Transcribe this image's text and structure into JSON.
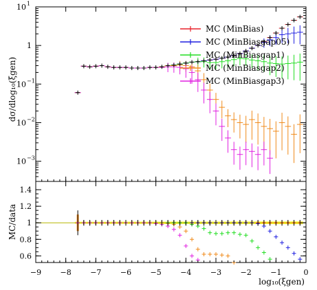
{
  "chart_data": {
    "type": "scatter",
    "title": "",
    "top_panel": {
      "ylabel": "dσ/dlog₁₀(ξgen)",
      "yscale": "log",
      "ylim": [
        0.0003,
        10
      ],
      "y_ticks": [
        {
          "value": 10,
          "label": "10",
          "exp": "1"
        },
        {
          "value": 1,
          "label": "1",
          "exp": ""
        },
        {
          "value": 0.1,
          "label": "10",
          "exp": "−1"
        },
        {
          "value": 0.01,
          "label": "10",
          "exp": "−2"
        },
        {
          "value": 0.001,
          "label": "10",
          "exp": "−3"
        }
      ]
    },
    "bottom_panel": {
      "ylabel": "MC/data",
      "ylim": [
        0.52,
        1.5
      ],
      "y_ticks": [
        1.4,
        1.2,
        1,
        0.8,
        0.6
      ]
    },
    "xlabel": "log₁₀(ξgen)",
    "xlim": [
      -9,
      0
    ],
    "x_ticks": [
      -9,
      -8,
      -7,
      -6,
      -5,
      -4,
      -3,
      -2,
      -1,
      0
    ],
    "legend": {
      "position": "top-right",
      "entries": [
        {
          "label": "MC (MinBias)",
          "color": "#e8202a"
        },
        {
          "label": "MC (MinBiasgap05)",
          "color": "#1f1fe0"
        },
        {
          "label": "MC (MinBiasgap1)",
          "color": "#22dd22"
        },
        {
          "label": "MC (MinBiasgap2)",
          "color": "#f08a1a"
        },
        {
          "label": "MC (MinBiasgap3)",
          "color": "#e020e0"
        }
      ]
    },
    "data_series": {
      "name": "data",
      "color": "#000000",
      "x": [
        -7.6,
        -7.4,
        -7.2,
        -7.0,
        -6.8,
        -6.6,
        -6.4,
        -6.2,
        -6.0,
        -5.8,
        -5.6,
        -5.4,
        -5.2,
        -5.0,
        -4.8,
        -4.6,
        -4.4,
        -4.2,
        -4.0,
        -3.8,
        -3.6,
        -3.4,
        -3.2,
        -3.0,
        -2.8,
        -2.6,
        -2.4,
        -2.2,
        -2.0,
        -1.8,
        -1.6,
        -1.4,
        -1.2,
        -1.0,
        -0.8,
        -0.6,
        -0.4,
        -0.2
      ],
      "y": [
        0.06,
        0.29,
        0.28,
        0.29,
        0.3,
        0.28,
        0.27,
        0.27,
        0.27,
        0.26,
        0.26,
        0.26,
        0.27,
        0.27,
        0.28,
        0.3,
        0.31,
        0.33,
        0.35,
        0.37,
        0.38,
        0.4,
        0.42,
        0.44,
        0.47,
        0.5,
        0.55,
        0.62,
        0.72,
        0.85,
        1.0,
        1.25,
        1.6,
        2.1,
        2.8,
        3.5,
        4.5,
        5.5
      ]
    },
    "series": [
      {
        "name": "MC (MinBias)",
        "color": "#e8202a",
        "x": [
          -7.6,
          -7.4,
          -7.2,
          -7.0,
          -6.8,
          -6.6,
          -6.4,
          -6.2,
          -6.0,
          -5.8,
          -5.6,
          -5.4,
          -5.2,
          -5.0,
          -4.8,
          -4.6,
          -4.4,
          -4.2,
          -4.0,
          -3.8,
          -3.6,
          -3.4,
          -3.2,
          -3.0,
          -2.8,
          -2.6,
          -2.4,
          -2.2,
          -2.0,
          -1.8,
          -1.6,
          -1.4,
          -1.2,
          -1.0,
          -0.8,
          -0.6,
          -0.4,
          -0.2
        ],
        "y": [
          0.06,
          0.29,
          0.28,
          0.29,
          0.3,
          0.28,
          0.27,
          0.27,
          0.27,
          0.26,
          0.26,
          0.26,
          0.27,
          0.27,
          0.28,
          0.3,
          0.31,
          0.33,
          0.35,
          0.37,
          0.38,
          0.4,
          0.42,
          0.44,
          0.47,
          0.5,
          0.55,
          0.62,
          0.72,
          0.85,
          1.0,
          1.25,
          1.6,
          2.1,
          2.8,
          3.5,
          4.5,
          5.5
        ],
        "ratio": [
          1.0,
          1.0,
          1.0,
          1.0,
          1.0,
          1.0,
          1.0,
          1.0,
          1.0,
          1.0,
          1.0,
          1.0,
          1.0,
          1.0,
          1.0,
          1.0,
          1.0,
          1.0,
          1.0,
          1.0,
          1.0,
          1.0,
          1.0,
          1.0,
          1.0,
          1.0,
          1.0,
          1.0,
          1.0,
          1.0,
          1.0,
          1.0,
          1.0,
          1.0,
          1.0,
          1.0,
          1.0,
          1.0
        ]
      },
      {
        "name": "MC (MinBiasgap05)",
        "color": "#1f1fe0",
        "x": [
          -7.6,
          -7.4,
          -7.2,
          -7.0,
          -6.8,
          -6.6,
          -6.4,
          -6.2,
          -6.0,
          -5.8,
          -5.6,
          -5.4,
          -5.2,
          -5.0,
          -4.8,
          -4.6,
          -4.4,
          -4.2,
          -4.0,
          -3.8,
          -3.6,
          -3.4,
          -3.2,
          -3.0,
          -2.8,
          -2.6,
          -2.4,
          -2.2,
          -2.0,
          -1.8,
          -1.6,
          -1.4,
          -1.2,
          -1.0,
          -0.8,
          -0.6,
          -0.4,
          -0.2
        ],
        "y": [
          0.06,
          0.29,
          0.28,
          0.29,
          0.3,
          0.28,
          0.27,
          0.27,
          0.27,
          0.26,
          0.26,
          0.26,
          0.27,
          0.27,
          0.28,
          0.3,
          0.31,
          0.33,
          0.35,
          0.37,
          0.38,
          0.4,
          0.42,
          0.44,
          0.47,
          0.5,
          0.55,
          0.62,
          0.72,
          0.85,
          1.0,
          1.2,
          1.4,
          1.6,
          1.9,
          2.0,
          2.1,
          2.2
        ],
        "ratio": [
          1.0,
          1.0,
          1.0,
          1.0,
          1.0,
          1.0,
          1.0,
          1.0,
          1.0,
          1.0,
          1.0,
          1.0,
          1.0,
          1.0,
          1.0,
          1.0,
          1.0,
          1.0,
          1.0,
          1.0,
          1.0,
          1.0,
          1.0,
          1.0,
          1.0,
          1.0,
          1.0,
          1.0,
          1.0,
          1.0,
          0.99,
          0.96,
          0.9,
          0.83,
          0.76,
          0.7,
          0.63,
          0.56
        ]
      },
      {
        "name": "MC (MinBiasgap1)",
        "color": "#22dd22",
        "x": [
          -7.6,
          -7.4,
          -7.2,
          -7.0,
          -6.8,
          -6.6,
          -6.4,
          -6.2,
          -6.0,
          -5.8,
          -5.6,
          -5.4,
          -5.2,
          -5.0,
          -4.8,
          -4.6,
          -4.4,
          -4.2,
          -4.0,
          -3.8,
          -3.6,
          -3.4,
          -3.2,
          -3.0,
          -2.8,
          -2.6,
          -2.4,
          -2.2,
          -2.0,
          -1.8,
          -1.6,
          -1.4,
          -1.2,
          -1.0,
          -0.8,
          -0.6,
          -0.4,
          -0.2
        ],
        "y": [
          0.06,
          0.29,
          0.28,
          0.29,
          0.3,
          0.28,
          0.27,
          0.27,
          0.27,
          0.26,
          0.26,
          0.26,
          0.27,
          0.27,
          0.28,
          0.3,
          0.31,
          0.33,
          0.35,
          0.37,
          0.38,
          0.38,
          0.36,
          0.36,
          0.38,
          0.4,
          0.43,
          0.46,
          0.45,
          0.42,
          0.4,
          0.38,
          0.35,
          0.34,
          0.33,
          0.34,
          0.35,
          0.37
        ],
        "ratio": [
          1.0,
          1.0,
          1.0,
          1.0,
          1.0,
          1.0,
          1.0,
          1.0,
          1.0,
          1.0,
          1.0,
          1.0,
          1.0,
          1.0,
          1.0,
          1.0,
          1.0,
          1.0,
          1.0,
          0.98,
          0.96,
          0.93,
          0.88,
          0.87,
          0.87,
          0.88,
          0.88,
          0.86,
          0.85,
          0.78,
          0.7,
          0.64,
          0.56,
          0.5,
          0.45,
          0.4,
          0.35,
          0.3
        ]
      },
      {
        "name": "MC (MinBiasgap2)",
        "color": "#f08a1a",
        "x": [
          -7.6,
          -7.4,
          -7.2,
          -7.0,
          -6.8,
          -6.6,
          -6.4,
          -6.2,
          -6.0,
          -5.8,
          -5.6,
          -5.4,
          -5.2,
          -5.0,
          -4.8,
          -4.6,
          -4.4,
          -4.2,
          -4.0,
          -3.8,
          -3.6,
          -3.4,
          -3.2,
          -3.0,
          -2.8,
          -2.6,
          -2.4,
          -2.2,
          -2.0,
          -1.8,
          -1.6,
          -1.4,
          -1.2,
          -1.0,
          -0.8,
          -0.6,
          -0.4,
          -0.2
        ],
        "y": [
          0.06,
          0.29,
          0.28,
          0.29,
          0.3,
          0.28,
          0.27,
          0.27,
          0.27,
          0.26,
          0.26,
          0.26,
          0.27,
          0.27,
          0.28,
          0.3,
          0.3,
          0.31,
          0.3,
          0.28,
          0.22,
          0.13,
          0.07,
          0.04,
          0.025,
          0.015,
          0.012,
          0.01,
          0.009,
          0.012,
          0.01,
          0.008,
          0.007,
          0.006,
          0.01,
          0.008,
          0.005,
          0.009
        ],
        "ratio": [
          1.0,
          1.0,
          1.0,
          1.0,
          1.0,
          1.0,
          1.0,
          1.0,
          1.0,
          1.0,
          1.0,
          1.0,
          1.0,
          1.0,
          1.0,
          0.99,
          0.98,
          0.95,
          0.9,
          0.8,
          0.68,
          0.62,
          0.62,
          0.62,
          0.61,
          0.6,
          0.52,
          0.4,
          0.3,
          0.25,
          0.2,
          0.15,
          0.1,
          0.08,
          0.07,
          0.06,
          0.05,
          0.05
        ]
      },
      {
        "name": "MC (MinBiasgap3)",
        "color": "#e020e0",
        "x": [
          -7.6,
          -7.4,
          -7.2,
          -7.0,
          -6.8,
          -6.6,
          -6.4,
          -6.2,
          -6.0,
          -5.8,
          -5.6,
          -5.4,
          -5.2,
          -5.0,
          -4.8,
          -4.6,
          -4.4,
          -4.2,
          -4.0,
          -3.8,
          -3.6,
          -3.4,
          -3.2,
          -3.0,
          -2.8,
          -2.6,
          -2.4,
          -2.2,
          -2.0,
          -1.8,
          -1.6,
          -1.4,
          -1.2
        ],
        "y": [
          0.06,
          0.29,
          0.28,
          0.29,
          0.3,
          0.28,
          0.27,
          0.27,
          0.27,
          0.26,
          0.26,
          0.26,
          0.27,
          0.27,
          0.27,
          0.28,
          0.28,
          0.27,
          0.25,
          0.2,
          0.13,
          0.07,
          0.04,
          0.02,
          0.008,
          0.004,
          0.002,
          0.0015,
          0.002,
          0.0018,
          0.0015,
          0.002,
          0.0012
        ],
        "ratio": [
          1.0,
          1.0,
          1.0,
          1.0,
          1.0,
          1.0,
          1.0,
          1.0,
          1.0,
          1.0,
          1.0,
          1.0,
          1.0,
          0.99,
          0.98,
          0.96,
          0.92,
          0.85,
          0.72,
          0.6,
          0.55,
          0.5,
          0.48,
          0.46,
          0.45,
          0.44,
          0.43,
          0.42,
          0.41,
          0.4,
          0.4,
          0.4,
          0.4
        ]
      }
    ]
  }
}
